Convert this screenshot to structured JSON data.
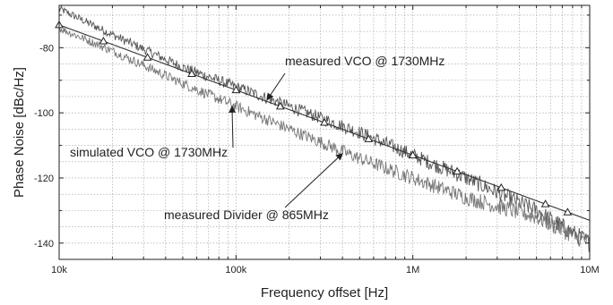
{
  "chart_data": {
    "type": "line",
    "xlabel": "Frequency offset [Hz]",
    "ylabel": "Phase Noise [dBc/Hz]",
    "xscale": "log",
    "xlim": [
      10000,
      10000000
    ],
    "ylim": [
      -145,
      -67
    ],
    "grid": true,
    "x_ticks": [
      10000,
      100000,
      1000000,
      10000000
    ],
    "x_tick_labels": [
      "10k",
      "100k",
      "1M",
      "10M"
    ],
    "y_ticks": [
      -80,
      -100,
      -120,
      -140
    ],
    "y_tick_labels": [
      "-80",
      "-100",
      "-120",
      "-140"
    ],
    "series": [
      {
        "name": "measured VCO @ 1730MHz",
        "color": "#555555",
        "x": [
          10000,
          20000,
          50000,
          100000,
          200000,
          500000,
          1000000,
          2000000,
          5000000,
          10000000
        ],
        "y": [
          -68,
          -76,
          -86,
          -92,
          -98,
          -106,
          -113,
          -120,
          -130,
          -140
        ]
      },
      {
        "name": "simulated VCO @ 1730MHz",
        "color": "#333333",
        "marker": "triangle",
        "x": [
          10000,
          20000,
          50000,
          100000,
          200000,
          500000,
          1000000,
          2000000,
          5000000,
          10000000
        ],
        "y": [
          -73,
          -79,
          -87,
          -93,
          -99,
          -107,
          -113,
          -119,
          -127,
          -133
        ]
      },
      {
        "name": "measured Divider @ 865MHz",
        "color": "#777777",
        "x": [
          10000,
          20000,
          50000,
          100000,
          200000,
          500000,
          1000000,
          2000000,
          5000000,
          10000000
        ],
        "y": [
          -74,
          -81,
          -91,
          -98,
          -105,
          -114,
          -120,
          -126,
          -132,
          -140
        ]
      }
    ],
    "annotations": [
      {
        "text": "measured VCO @ 1730MHz",
        "target_x": 150000,
        "target_y": -96.0
      },
      {
        "text": "simulated VCO @ 1730MHz",
        "target_x": 95000,
        "target_y": -98.0
      },
      {
        "text": "measured Divider @ 865MHz",
        "target_x": 400000,
        "target_y": -112.5
      }
    ]
  }
}
